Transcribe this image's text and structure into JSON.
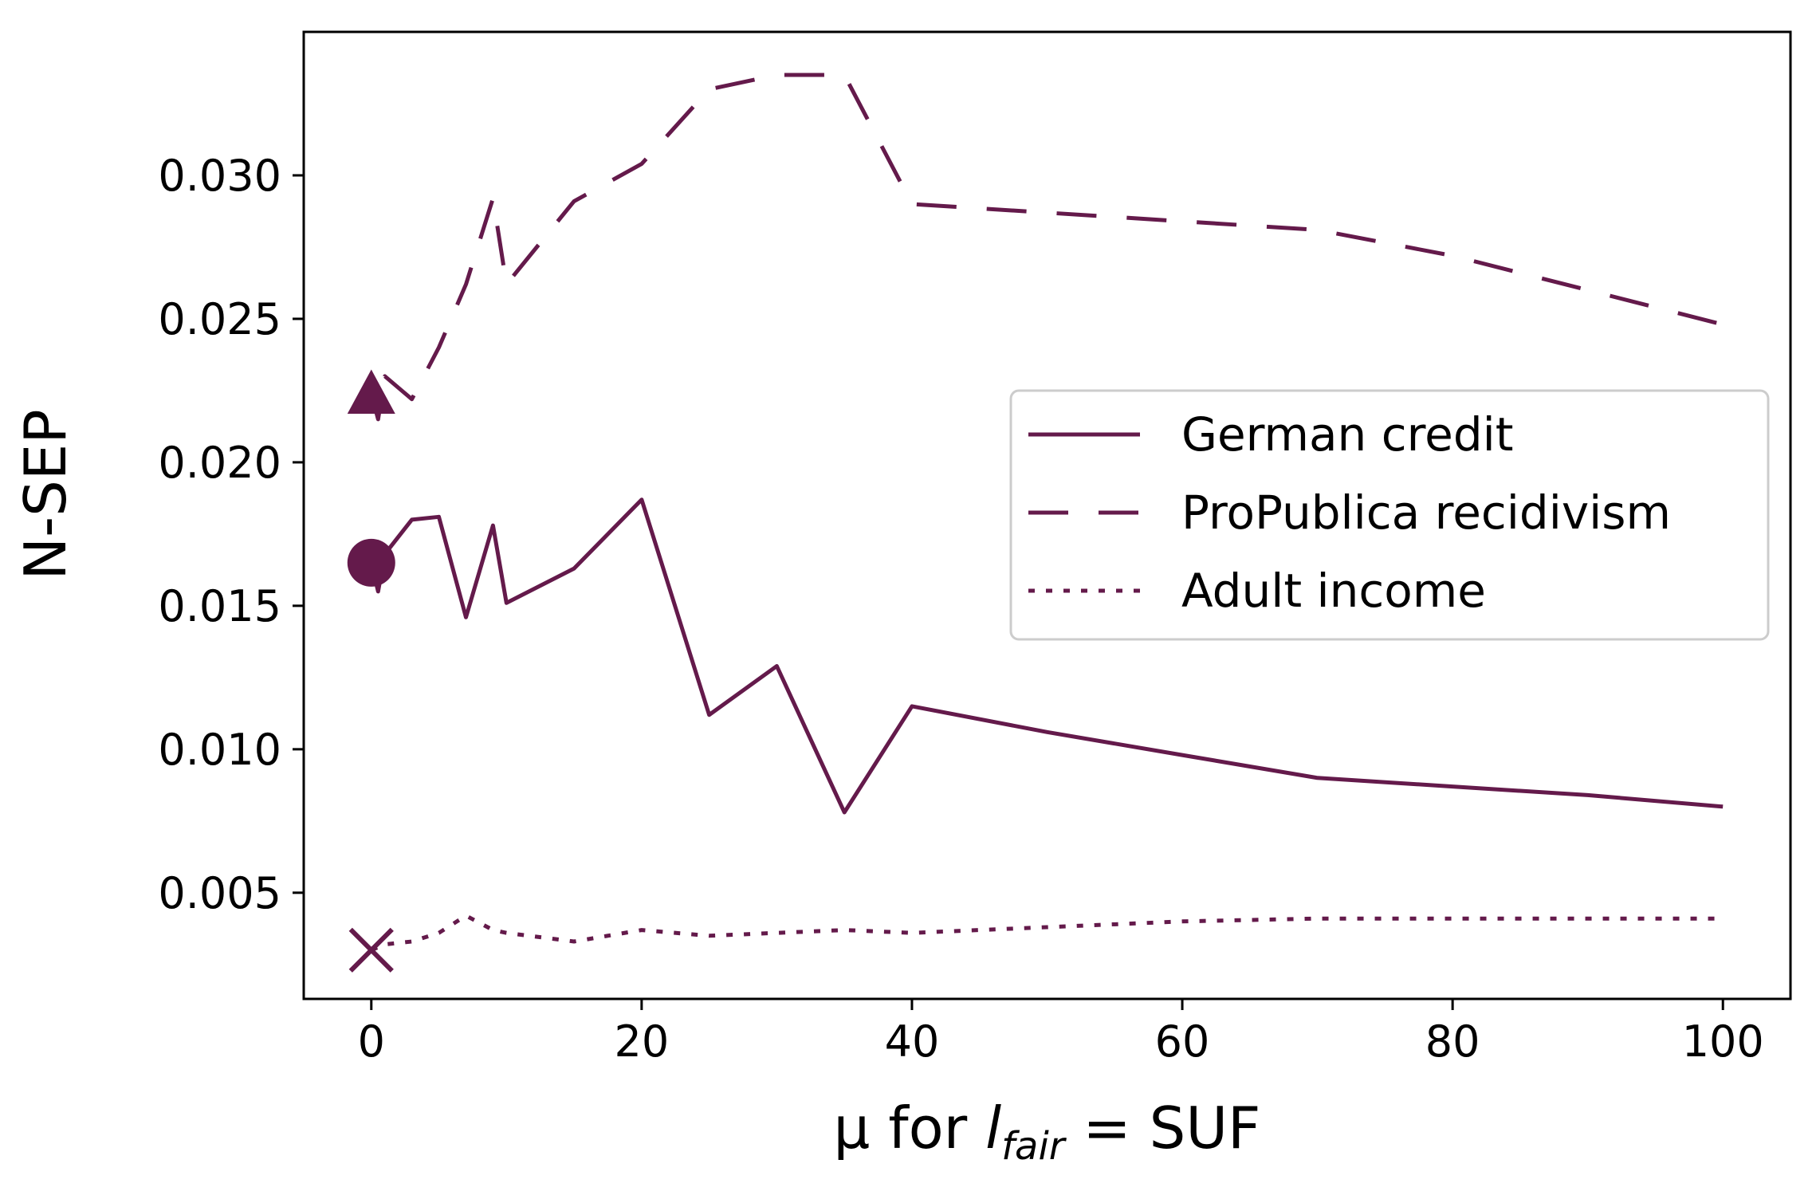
{
  "chart_data": {
    "type": "line",
    "title": "",
    "xlabel": {
      "prefix": "μ for ",
      "l": "l",
      "sub": "fair",
      "suffix": " = SUF"
    },
    "ylabel": "N-SEP",
    "xlim": [
      -5,
      105
    ],
    "ylim": [
      0.0013,
      0.035
    ],
    "xticks": [
      0,
      20,
      40,
      60,
      80,
      100
    ],
    "yticks": [
      0.005,
      0.01,
      0.015,
      0.02,
      0.025,
      0.03
    ],
    "ytick_labels": [
      "0.005",
      "0.010",
      "0.015",
      "0.020",
      "0.025",
      "0.030"
    ],
    "grid": false,
    "legend_position": "center-right",
    "color": "#641a4b",
    "series": [
      {
        "name": "German credit",
        "style": "solid",
        "marker": "circle",
        "x": [
          0,
          0.5,
          1,
          3,
          5,
          7,
          9,
          10,
          15,
          20,
          25,
          30,
          35,
          40,
          50,
          60,
          70,
          80,
          90,
          100
        ],
        "y": [
          0.0165,
          0.0155,
          0.0168,
          0.018,
          0.0181,
          0.0146,
          0.0178,
          0.0151,
          0.0163,
          0.0187,
          0.0112,
          0.0129,
          0.0078,
          0.0115,
          0.0106,
          0.0098,
          0.009,
          0.0087,
          0.0084,
          0.008
        ]
      },
      {
        "name": "ProPublica recidivism",
        "style": "dashed",
        "marker": "triangle",
        "x": [
          0,
          0.5,
          1,
          3,
          5,
          7,
          9,
          10,
          15,
          20,
          25,
          30,
          35,
          40,
          50,
          60,
          70,
          80,
          90,
          100
        ],
        "y": [
          0.0224,
          0.0215,
          0.023,
          0.0222,
          0.024,
          0.0262,
          0.0292,
          0.0262,
          0.0291,
          0.0304,
          0.033,
          0.0335,
          0.0335,
          0.029,
          0.0287,
          0.0284,
          0.0281,
          0.0272,
          0.026,
          0.0248
        ]
      },
      {
        "name": "Adult income",
        "style": "dotted",
        "marker": "x",
        "x": [
          0,
          1,
          3,
          5,
          7,
          9,
          10,
          15,
          20,
          25,
          30,
          35,
          40,
          50,
          60,
          70,
          80,
          90,
          100
        ],
        "y": [
          0.003,
          0.0032,
          0.0033,
          0.0036,
          0.0042,
          0.0037,
          0.0036,
          0.0033,
          0.0037,
          0.0035,
          0.0036,
          0.0037,
          0.0036,
          0.0038,
          0.004,
          0.0041,
          0.0041,
          0.0041,
          0.0041
        ]
      }
    ]
  }
}
